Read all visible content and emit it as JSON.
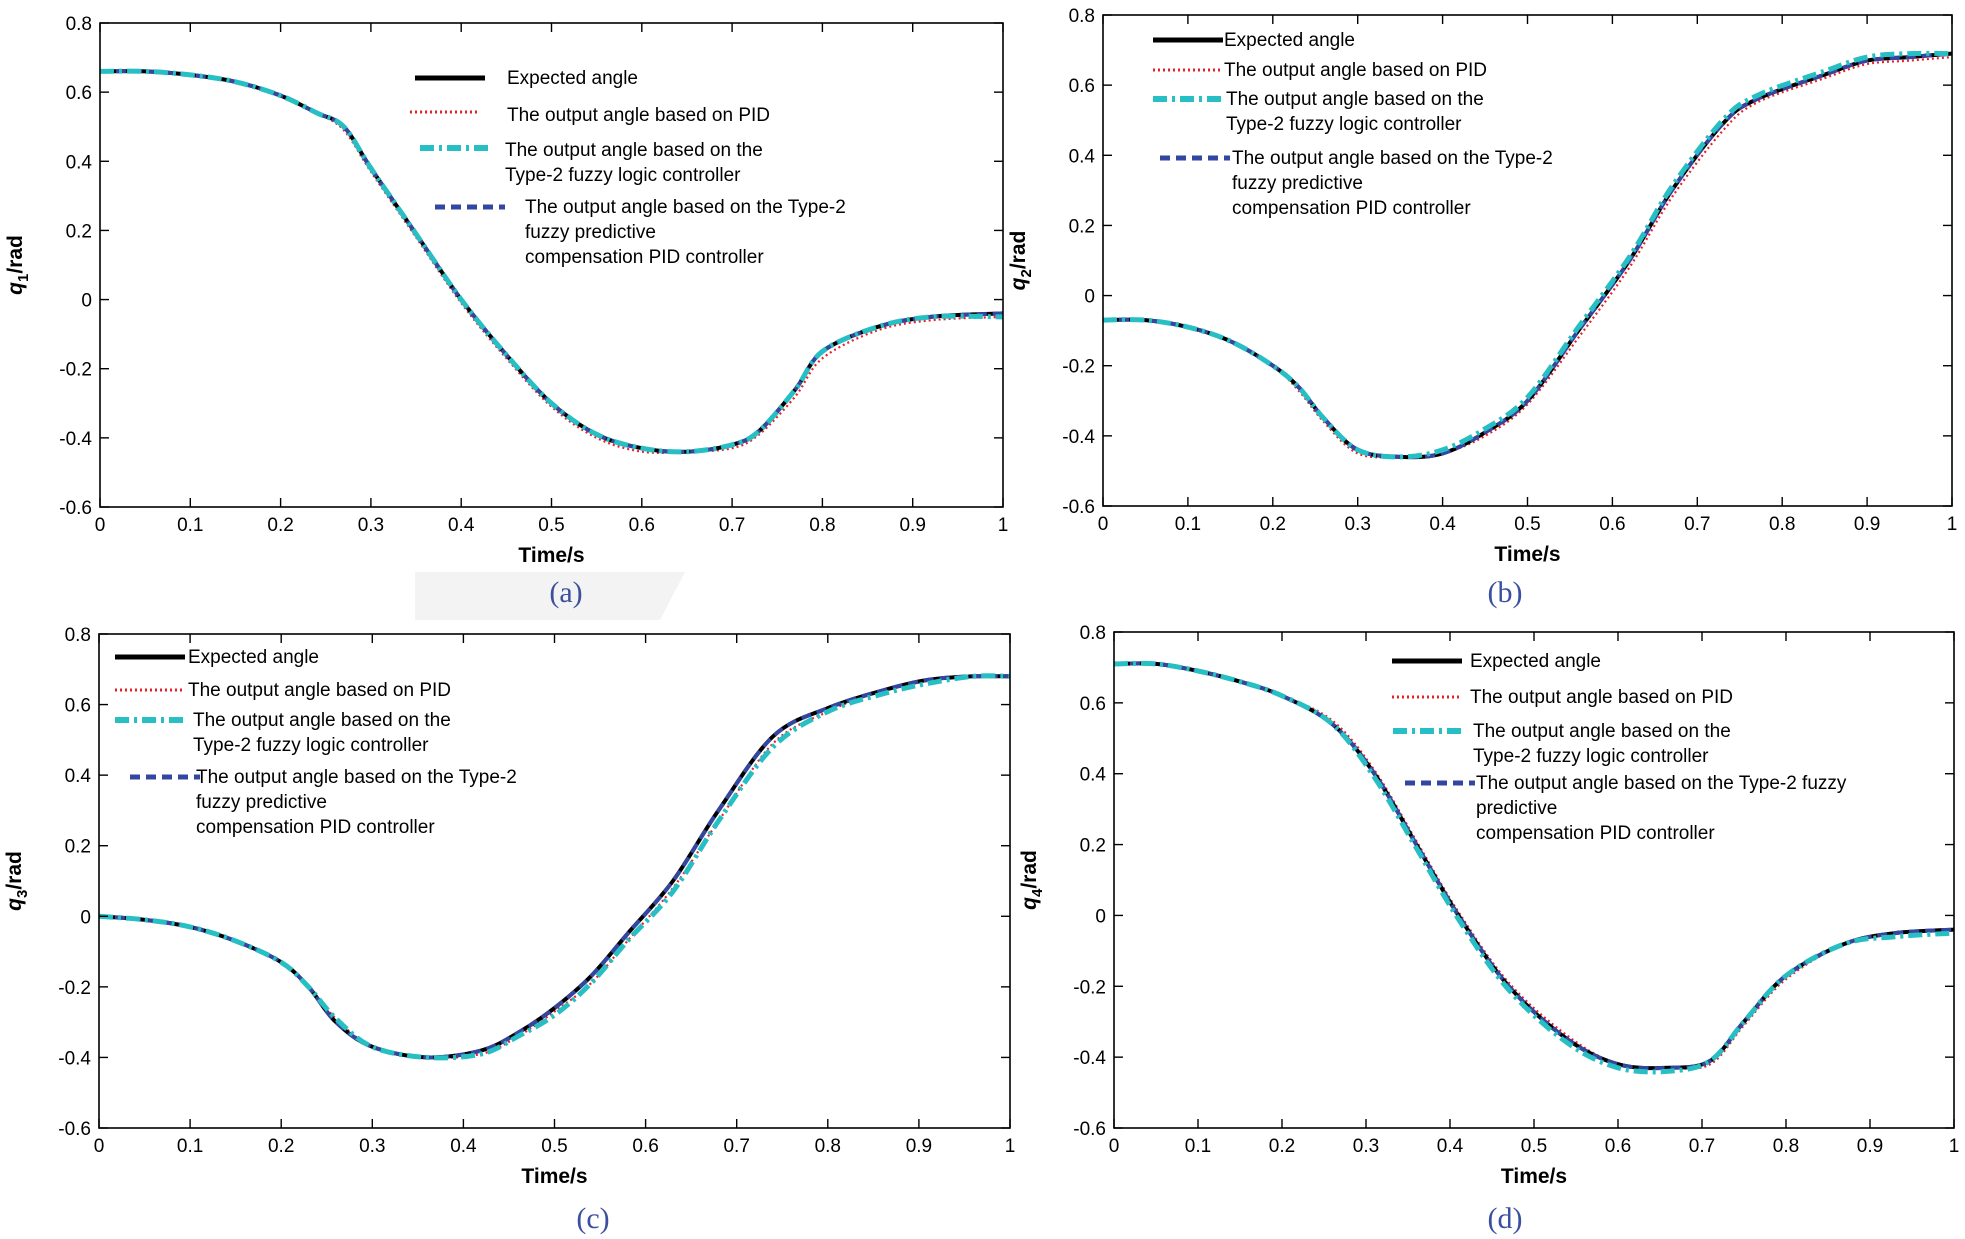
{
  "figure": {
    "colors": {
      "expected": "#000000",
      "pid": "#e8202a",
      "type2_flc": "#27bfc3",
      "type2_fpc_pid": "#3546a0",
      "caption": "#3b4fa0"
    }
  },
  "chart_data": [
    {
      "id": "a",
      "type": "line",
      "caption": "(a)",
      "title": "",
      "xlabel": "Time/s",
      "ylabel_main": "q",
      "ylabel_sub": "1",
      "ylabel_unit": "/rad",
      "xlim": [
        0,
        1
      ],
      "ylim": [
        -0.6,
        0.8
      ],
      "xticks": [
        "0",
        "0.1",
        "0.2",
        "0.3",
        "0.4",
        "0.5",
        "0.6",
        "0.7",
        "0.8",
        "0.9",
        "1"
      ],
      "yticks": [
        "-0.6",
        "-0.4",
        "-0.2",
        "0",
        "0.2",
        "0.4",
        "0.6",
        "0.8"
      ],
      "legend_position": "top-right",
      "legend": [
        {
          "key": "expected",
          "lines": [
            "Expected angle"
          ]
        },
        {
          "key": "pid",
          "lines": [
            "The output angle based on PID"
          ]
        },
        {
          "key": "type2_flc",
          "lines": [
            "The output angle based on the",
            " Type-2 fuzzy logic controller"
          ]
        },
        {
          "key": "type2_fpc_pid",
          "lines": [
            "The output angle based on the Type-2",
            "fuzzy predictive",
            "compensation PID controller"
          ]
        }
      ],
      "x": [
        0,
        0.05,
        0.1,
        0.15,
        0.2,
        0.24,
        0.27,
        0.3,
        0.35,
        0.4,
        0.45,
        0.5,
        0.55,
        0.6,
        0.65,
        0.7,
        0.73,
        0.77,
        0.8,
        0.86,
        0.92,
        1.0
      ],
      "series": [
        {
          "name": "Expected angle",
          "key": "expected",
          "values": [
            0.66,
            0.66,
            0.65,
            0.63,
            0.59,
            0.54,
            0.5,
            0.38,
            0.19,
            0.0,
            -0.16,
            -0.3,
            -0.39,
            -0.43,
            -0.44,
            -0.42,
            -0.38,
            -0.26,
            -0.15,
            -0.08,
            -0.05,
            -0.04
          ]
        },
        {
          "name": "The output angle based on PID",
          "key": "pid",
          "values": [
            0.66,
            0.66,
            0.65,
            0.63,
            0.59,
            0.54,
            0.49,
            0.37,
            0.18,
            -0.01,
            -0.17,
            -0.31,
            -0.4,
            -0.44,
            -0.44,
            -0.43,
            -0.39,
            -0.28,
            -0.17,
            -0.09,
            -0.06,
            -0.05
          ]
        },
        {
          "name": "The output angle based on the Type-2 fuzzy logic controller",
          "key": "type2_flc",
          "values": [
            0.66,
            0.66,
            0.65,
            0.63,
            0.59,
            0.54,
            0.5,
            0.38,
            0.19,
            0.0,
            -0.16,
            -0.3,
            -0.39,
            -0.43,
            -0.44,
            -0.42,
            -0.38,
            -0.26,
            -0.15,
            -0.08,
            -0.05,
            -0.05
          ]
        },
        {
          "name": "The output angle based on the Type-2 fuzzy predictive compensation PID controller",
          "key": "type2_fpc_pid",
          "values": [
            0.66,
            0.66,
            0.65,
            0.63,
            0.59,
            0.54,
            0.5,
            0.38,
            0.19,
            0.0,
            -0.16,
            -0.3,
            -0.39,
            -0.43,
            -0.44,
            -0.42,
            -0.38,
            -0.26,
            -0.15,
            -0.08,
            -0.05,
            -0.04
          ]
        }
      ]
    },
    {
      "id": "b",
      "type": "line",
      "caption": "(b)",
      "title": "",
      "xlabel": "Time/s",
      "ylabel_main": "q",
      "ylabel_sub": "2",
      "ylabel_unit": "/rad",
      "xlim": [
        0,
        1
      ],
      "ylim": [
        -0.6,
        0.8
      ],
      "xticks": [
        "0",
        "0.1",
        "0.2",
        "0.3",
        "0.4",
        "0.5",
        "0.6",
        "0.7",
        "0.8",
        "0.9",
        "1"
      ],
      "yticks": [
        "-0.6",
        "-0.4",
        "-0.2",
        "0",
        "0.2",
        "0.4",
        "0.6",
        "0.8"
      ],
      "legend_position": "top-left",
      "legend": [
        {
          "key": "expected",
          "lines": [
            "Expected angle"
          ]
        },
        {
          "key": "pid",
          "lines": [
            "The output angle based on PID"
          ]
        },
        {
          "key": "type2_flc",
          "lines": [
            "The output angle based on the",
            " Type-2 fuzzy logic controller"
          ]
        },
        {
          "key": "type2_fpc_pid",
          "lines": [
            "The output angle based on the Type-2",
            "fuzzy predictive",
            "compensation PID controller"
          ]
        }
      ],
      "x": [
        0,
        0.05,
        0.1,
        0.15,
        0.2,
        0.23,
        0.26,
        0.3,
        0.35,
        0.4,
        0.45,
        0.5,
        0.56,
        0.62,
        0.67,
        0.73,
        0.77,
        0.85,
        0.9,
        0.95,
        1.0
      ],
      "series": [
        {
          "name": "Expected angle",
          "key": "expected",
          "values": [
            -0.07,
            -0.07,
            -0.09,
            -0.13,
            -0.2,
            -0.26,
            -0.35,
            -0.44,
            -0.46,
            -0.45,
            -0.39,
            -0.3,
            -0.1,
            0.1,
            0.3,
            0.49,
            0.56,
            0.63,
            0.67,
            0.68,
            0.69
          ]
        },
        {
          "name": "The output angle based on PID",
          "key": "pid",
          "values": [
            -0.07,
            -0.07,
            -0.09,
            -0.13,
            -0.2,
            -0.27,
            -0.36,
            -0.45,
            -0.46,
            -0.45,
            -0.4,
            -0.31,
            -0.12,
            0.08,
            0.28,
            0.47,
            0.55,
            0.62,
            0.66,
            0.67,
            0.68
          ]
        },
        {
          "name": "The output angle based on the Type-2 fuzzy logic controller",
          "key": "type2_flc",
          "values": [
            -0.07,
            -0.07,
            -0.09,
            -0.13,
            -0.2,
            -0.26,
            -0.35,
            -0.44,
            -0.46,
            -0.44,
            -0.38,
            -0.29,
            -0.09,
            0.11,
            0.31,
            0.5,
            0.57,
            0.64,
            0.68,
            0.69,
            0.69
          ]
        },
        {
          "name": "The output angle based on the Type-2 fuzzy predictive compensation PID controller",
          "key": "type2_fpc_pid",
          "values": [
            -0.07,
            -0.07,
            -0.09,
            -0.13,
            -0.2,
            -0.26,
            -0.35,
            -0.44,
            -0.46,
            -0.45,
            -0.39,
            -0.3,
            -0.1,
            0.1,
            0.3,
            0.49,
            0.56,
            0.63,
            0.67,
            0.68,
            0.69
          ]
        }
      ]
    },
    {
      "id": "c",
      "type": "line",
      "caption": "(c)",
      "title": "",
      "xlabel": "Time/s",
      "ylabel_main": "q",
      "ylabel_sub": "3",
      "ylabel_unit": "/rad",
      "xlim": [
        0,
        1
      ],
      "ylim": [
        -0.6,
        0.8
      ],
      "xticks": [
        "0",
        "0.1",
        "0.2",
        "0.3",
        "0.4",
        "0.5",
        "0.6",
        "0.7",
        "0.8",
        "0.9",
        "1"
      ],
      "yticks": [
        "-0.6",
        "-0.4",
        "-0.2",
        "0",
        "0.2",
        "0.4",
        "0.6",
        "0.8"
      ],
      "legend_position": "top-left",
      "legend": [
        {
          "key": "expected",
          "lines": [
            "Expected angle"
          ]
        },
        {
          "key": "pid",
          "lines": [
            "The output angle based on PID"
          ]
        },
        {
          "key": "type2_flc",
          "lines": [
            "The output angle based on the",
            "Type-2 fuzzy logic controller"
          ]
        },
        {
          "key": "type2_fpc_pid",
          "lines": [
            "The output angle based on the Type-2",
            "fuzzy predictive",
            "compensation PID controller"
          ]
        }
      ],
      "x": [
        0,
        0.05,
        0.1,
        0.15,
        0.2,
        0.23,
        0.26,
        0.3,
        0.36,
        0.42,
        0.46,
        0.5,
        0.54,
        0.58,
        0.63,
        0.68,
        0.74,
        0.8,
        0.86,
        0.91,
        0.96,
        1.0
      ],
      "series": [
        {
          "name": "Expected angle",
          "key": "expected",
          "values": [
            0.0,
            -0.01,
            -0.03,
            -0.07,
            -0.13,
            -0.2,
            -0.3,
            -0.37,
            -0.4,
            -0.38,
            -0.33,
            -0.26,
            -0.17,
            -0.05,
            0.1,
            0.3,
            0.51,
            0.59,
            0.64,
            0.67,
            0.68,
            0.68
          ]
        },
        {
          "name": "The output angle based on PID",
          "key": "pid",
          "values": [
            0.0,
            -0.01,
            -0.03,
            -0.07,
            -0.13,
            -0.2,
            -0.29,
            -0.37,
            -0.4,
            -0.39,
            -0.34,
            -0.27,
            -0.19,
            -0.07,
            0.08,
            0.27,
            0.49,
            0.58,
            0.64,
            0.67,
            0.68,
            0.68
          ]
        },
        {
          "name": "The output angle based on the Type-2 fuzzy logic controller",
          "key": "type2_flc",
          "values": [
            0.0,
            -0.01,
            -0.03,
            -0.07,
            -0.13,
            -0.2,
            -0.29,
            -0.37,
            -0.4,
            -0.39,
            -0.34,
            -0.28,
            -0.19,
            -0.07,
            0.07,
            0.27,
            0.48,
            0.58,
            0.63,
            0.66,
            0.68,
            0.68
          ]
        },
        {
          "name": "The output angle based on the Type-2 fuzzy predictive compensation PID controller",
          "key": "type2_fpc_pid",
          "values": [
            0.0,
            -0.01,
            -0.03,
            -0.07,
            -0.13,
            -0.2,
            -0.3,
            -0.37,
            -0.4,
            -0.38,
            -0.33,
            -0.26,
            -0.17,
            -0.05,
            0.1,
            0.3,
            0.51,
            0.59,
            0.64,
            0.67,
            0.68,
            0.68
          ]
        }
      ]
    },
    {
      "id": "d",
      "type": "line",
      "caption": "(d)",
      "title": "",
      "xlabel": "Time/s",
      "ylabel_main": "q",
      "ylabel_sub": "4",
      "ylabel_unit": "/rad",
      "xlim": [
        0,
        1
      ],
      "ylim": [
        -0.6,
        0.8
      ],
      "xticks": [
        "0",
        "0.1",
        "0.2",
        "0.3",
        "0.4",
        "0.5",
        "0.6",
        "0.7",
        "0.8",
        "0.9",
        "1"
      ],
      "yticks": [
        "-0.6",
        "-0.4",
        "-0.2",
        "0",
        "0.2",
        "0.4",
        "0.6",
        "0.8"
      ],
      "legend_position": "top-right",
      "legend": [
        {
          "key": "expected",
          "lines": [
            "Expected angle"
          ]
        },
        {
          "key": "pid",
          "lines": [
            "The output angle based on PID"
          ]
        },
        {
          "key": "type2_flc",
          "lines": [
            "The output angle based on the",
            " Type-2 fuzzy logic controller"
          ]
        },
        {
          "key": "type2_fpc_pid",
          "lines": [
            "The output angle based on the Type-2 fuzzy",
            "predictive",
            "compensation PID controller"
          ]
        }
      ],
      "x": [
        0,
        0.05,
        0.1,
        0.15,
        0.2,
        0.26,
        0.31,
        0.36,
        0.41,
        0.47,
        0.54,
        0.6,
        0.66,
        0.71,
        0.75,
        0.8,
        0.87,
        0.93,
        1.0
      ],
      "series": [
        {
          "name": "Expected angle",
          "key": "expected",
          "values": [
            0.71,
            0.71,
            0.69,
            0.66,
            0.62,
            0.54,
            0.4,
            0.2,
            0.0,
            -0.2,
            -0.35,
            -0.42,
            -0.43,
            -0.41,
            -0.3,
            -0.17,
            -0.08,
            -0.05,
            -0.04
          ]
        },
        {
          "name": "The output angle based on PID",
          "key": "pid",
          "values": [
            0.71,
            0.71,
            0.69,
            0.66,
            0.62,
            0.55,
            0.41,
            0.21,
            0.01,
            -0.19,
            -0.34,
            -0.42,
            -0.43,
            -0.42,
            -0.31,
            -0.18,
            -0.08,
            -0.05,
            -0.04
          ]
        },
        {
          "name": "The output angle based on the Type-2 fuzzy logic controller",
          "key": "type2_flc",
          "values": [
            0.71,
            0.71,
            0.69,
            0.66,
            0.62,
            0.54,
            0.39,
            0.19,
            -0.01,
            -0.21,
            -0.36,
            -0.43,
            -0.44,
            -0.41,
            -0.3,
            -0.17,
            -0.08,
            -0.06,
            -0.05
          ]
        },
        {
          "name": "The output angle based on the Type-2 fuzzy predictive compensation PID controller",
          "key": "type2_fpc_pid",
          "values": [
            0.71,
            0.71,
            0.69,
            0.66,
            0.62,
            0.54,
            0.4,
            0.2,
            0.0,
            -0.2,
            -0.35,
            -0.42,
            -0.43,
            -0.41,
            -0.3,
            -0.17,
            -0.08,
            -0.05,
            -0.04
          ]
        }
      ]
    }
  ]
}
